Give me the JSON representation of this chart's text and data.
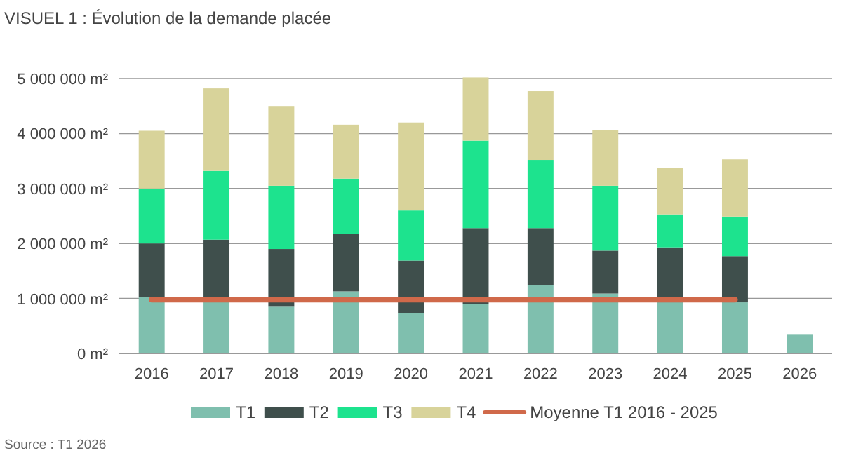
{
  "chart_data": {
    "type": "bar",
    "title": "VISUEL 1 : Évolution de la demande placée",
    "stacked": true,
    "grid": "y",
    "legend": "bottom",
    "categories": [
      "2016",
      "2017",
      "2018",
      "2019",
      "2020",
      "2021",
      "2022",
      "2023",
      "2024",
      "2025",
      "2026"
    ],
    "ylim": [
      0,
      5000000
    ],
    "yticks": [
      {
        "value": 0,
        "label": "0 m²"
      },
      {
        "value": 1000000,
        "label": "1 000 000 m²"
      },
      {
        "value": 2000000,
        "label": "2 000 000 m²"
      },
      {
        "value": 3000000,
        "label": "3 000 000 m²"
      },
      {
        "value": 4000000,
        "label": "4 000 000 m²"
      },
      {
        "value": 5000000,
        "label": "5 000 000 m²"
      }
    ],
    "series": [
      {
        "name": "T1",
        "color": "#7fbfae",
        "values": [
          1030000,
          950000,
          850000,
          1130000,
          730000,
          900000,
          1250000,
          1090000,
          930000,
          930000,
          340000
        ]
      },
      {
        "name": "T2",
        "color": "#3f4f4c",
        "values": [
          970000,
          1120000,
          1050000,
          1050000,
          960000,
          1380000,
          1030000,
          780000,
          1000000,
          840000,
          null
        ]
      },
      {
        "name": "T3",
        "color": "#1de38e",
        "values": [
          1000000,
          1250000,
          1150000,
          1000000,
          910000,
          1590000,
          1240000,
          1180000,
          600000,
          720000,
          null
        ]
      },
      {
        "name": "T4",
        "color": "#d8d39a",
        "values": [
          1050000,
          1500000,
          1450000,
          980000,
          1600000,
          1150000,
          1250000,
          1010000,
          850000,
          1040000,
          null
        ]
      },
      {
        "name": "Moyenne T1 2016 - 2025",
        "type": "line",
        "color": "#d0694a",
        "values": [
          980000,
          980000,
          980000,
          980000,
          980000,
          980000,
          980000,
          980000,
          980000,
          980000,
          null
        ]
      }
    ],
    "annotations": [
      "Source : T1 2026"
    ]
  }
}
